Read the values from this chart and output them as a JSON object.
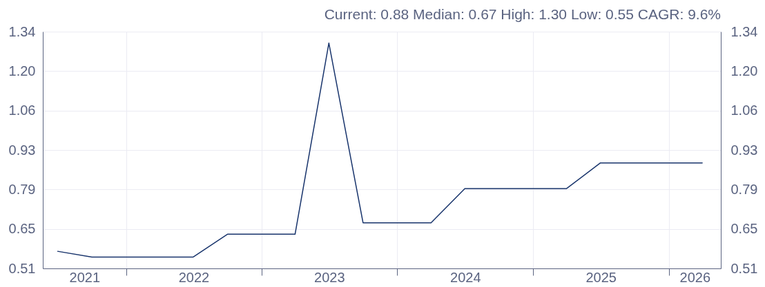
{
  "chart_data": {
    "type": "line",
    "annotations": [
      "Current: 0.88  Median: 0.67  High: 1.30  Low: 0.55  CAGR: 9.6%"
    ],
    "x": [
      "2021-07-01",
      "2021-10-01",
      "2022-01-01",
      "2022-04-01",
      "2022-07-01",
      "2022-10-01",
      "2023-01-01",
      "2023-04-01",
      "2023-07-01",
      "2023-10-01",
      "2024-01-01",
      "2024-04-01",
      "2024-07-01",
      "2024-10-01",
      "2025-01-01",
      "2025-04-01",
      "2025-07-01",
      "2025-10-01",
      "2026-01-01",
      "2026-04-01"
    ],
    "series": [
      {
        "color": "#17336b",
        "values": [
          0.57,
          0.55,
          0.55,
          0.55,
          0.55,
          0.63,
          0.63,
          0.63,
          1.3,
          0.67,
          0.67,
          0.67,
          0.79,
          0.79,
          0.79,
          0.79,
          0.88,
          0.88,
          0.88,
          0.88
        ]
      }
    ],
    "xlim": [
      "2021-05-22",
      "2026-05-21"
    ],
    "xticks": [
      {
        "value": "2021-09-11",
        "label": "2021"
      },
      {
        "value": "2022-01-01",
        "label": null
      },
      {
        "value": "2022-07-02",
        "label": "2022"
      },
      {
        "value": "2023-01-01",
        "label": null
      },
      {
        "value": "2023-07-02",
        "label": "2023"
      },
      {
        "value": "2024-01-01",
        "label": null
      },
      {
        "value": "2024-07-02",
        "label": "2024"
      },
      {
        "value": "2025-01-01",
        "label": null
      },
      {
        "value": "2025-07-02",
        "label": "2025"
      },
      {
        "value": "2026-01-01",
        "label": null
      },
      {
        "value": "2026-03-12",
        "label": "2026"
      }
    ],
    "ylim": [
      0.51,
      1.34
    ],
    "yticks": [
      0.51,
      {
        "value": 0.6483,
        "label": "0.65"
      },
      {
        "value": 0.7867,
        "label": "0.79"
      },
      {
        "value": 0.925,
        "label": "0.93"
      },
      {
        "value": 1.0633,
        "label": "1.06"
      },
      {
        "value": 1.2017,
        "label": "1.20"
      },
      1.34
    ],
    "y2lim": [
      0.51,
      1.34
    ],
    "y2ticks": [
      0.51,
      {
        "value": 0.6483,
        "label": "0.65"
      },
      {
        "value": 0.7867,
        "label": "0.79"
      },
      {
        "value": 0.925,
        "label": "0.93"
      },
      {
        "value": 1.0633,
        "label": "1.06"
      },
      {
        "value": 1.2017,
        "label": "1.20"
      },
      1.34
    ],
    "grid": true
  }
}
